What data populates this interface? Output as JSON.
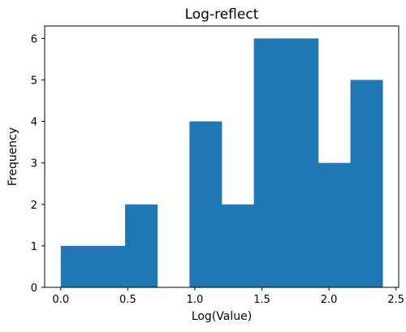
{
  "chart_data": {
    "type": "bar",
    "title": "Log-reflect",
    "xlabel": "Log(Value)",
    "ylabel": "Frequency",
    "bins": [
      {
        "x0": 0.0,
        "x1": 0.24,
        "count": 1
      },
      {
        "x0": 0.24,
        "x1": 0.48,
        "count": 1
      },
      {
        "x0": 0.48,
        "x1": 0.72,
        "count": 2
      },
      {
        "x0": 0.72,
        "x1": 0.96,
        "count": 0
      },
      {
        "x0": 0.96,
        "x1": 1.2,
        "count": 4
      },
      {
        "x0": 1.2,
        "x1": 1.44,
        "count": 2
      },
      {
        "x0": 1.44,
        "x1": 1.68,
        "count": 6
      },
      {
        "x0": 1.68,
        "x1": 1.92,
        "count": 6
      },
      {
        "x0": 1.92,
        "x1": 2.16,
        "count": 3
      },
      {
        "x0": 2.16,
        "x1": 2.4,
        "count": 5
      }
    ],
    "xlim": [
      -0.12,
      2.52
    ],
    "ylim": [
      0,
      6.3
    ],
    "x_ticks": [
      {
        "value": 0.0,
        "label": "0.0"
      },
      {
        "value": 0.5,
        "label": "0.5"
      },
      {
        "value": 1.0,
        "label": "1.0"
      },
      {
        "value": 1.5,
        "label": "1.5"
      },
      {
        "value": 2.0,
        "label": "2.0"
      },
      {
        "value": 2.5,
        "label": "2.5"
      }
    ],
    "y_ticks": [
      {
        "value": 0,
        "label": "0"
      },
      {
        "value": 1,
        "label": "1"
      },
      {
        "value": 2,
        "label": "2"
      },
      {
        "value": 3,
        "label": "3"
      },
      {
        "value": 4,
        "label": "4"
      },
      {
        "value": 5,
        "label": "5"
      },
      {
        "value": 6,
        "label": "6"
      }
    ],
    "bar_color": "#1f77b4",
    "grid": false,
    "legend": "none"
  }
}
